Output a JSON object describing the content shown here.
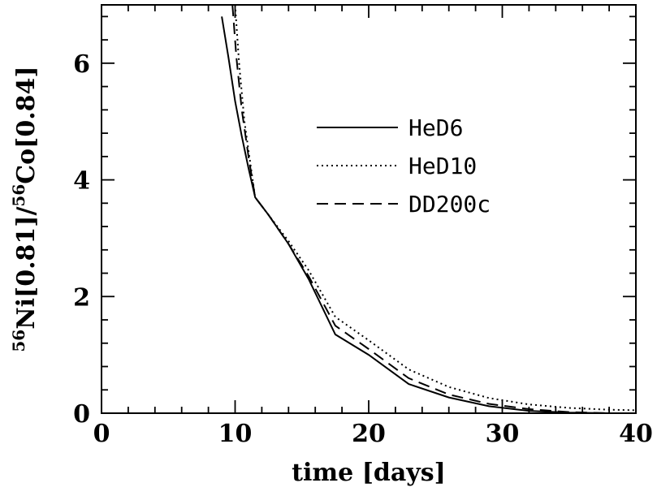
{
  "chart_data": {
    "type": "line",
    "title": "",
    "xlabel": "time [days]",
    "ylabel_parts": {
      "sup1": "56",
      "main1": "Ni[0.81]/",
      "sup2": "56",
      "main2": "Co[0.84]"
    },
    "xlim": [
      0,
      40
    ],
    "ylim": [
      0,
      7
    ],
    "x_ticks": [
      0,
      10,
      20,
      30,
      40
    ],
    "y_ticks": [
      0,
      2,
      4,
      6
    ],
    "x_minor_step": 2,
    "y_minor_step": 0.4,
    "grid": false,
    "legend_position": "upper-right",
    "series": [
      {
        "name": "HeD6",
        "style": "solid",
        "x": [
          9.0,
          9.5,
          10.0,
          10.5,
          11.0,
          11.5,
          12.5,
          14.0,
          15.5,
          17.5,
          20.0,
          23.0,
          26.0,
          29.0,
          32.0,
          35.0,
          38.0,
          40.0
        ],
        "y": [
          6.8,
          6.1,
          5.35,
          4.75,
          4.2,
          3.7,
          3.4,
          2.9,
          2.3,
          1.35,
          1.0,
          0.5,
          0.27,
          0.12,
          0.04,
          0.01,
          0.0,
          0.0
        ]
      },
      {
        "name": "HeD10",
        "style": "dotted",
        "x": [
          10.0,
          10.3,
          10.7,
          11.0,
          11.5,
          12.5,
          14.0,
          15.5,
          17.5,
          20.0,
          23.0,
          26.0,
          29.0,
          32.0,
          35.0,
          38.0,
          40.0
        ],
        "y": [
          7.0,
          6.0,
          5.0,
          4.5,
          3.7,
          3.4,
          2.95,
          2.45,
          1.65,
          1.25,
          0.75,
          0.45,
          0.26,
          0.15,
          0.09,
          0.06,
          0.05
        ]
      },
      {
        "name": "DD200c",
        "style": "dashed",
        "x": [
          9.8,
          10.1,
          10.5,
          11.0,
          11.5,
          12.5,
          14.0,
          15.5,
          17.5,
          20.0,
          23.0,
          26.0,
          29.0,
          32.0,
          35.0,
          38.0,
          40.0
        ],
        "y": [
          7.0,
          6.1,
          5.2,
          4.4,
          3.7,
          3.4,
          2.9,
          2.35,
          1.5,
          1.1,
          0.6,
          0.32,
          0.16,
          0.07,
          0.02,
          0.0,
          0.0
        ]
      }
    ]
  }
}
